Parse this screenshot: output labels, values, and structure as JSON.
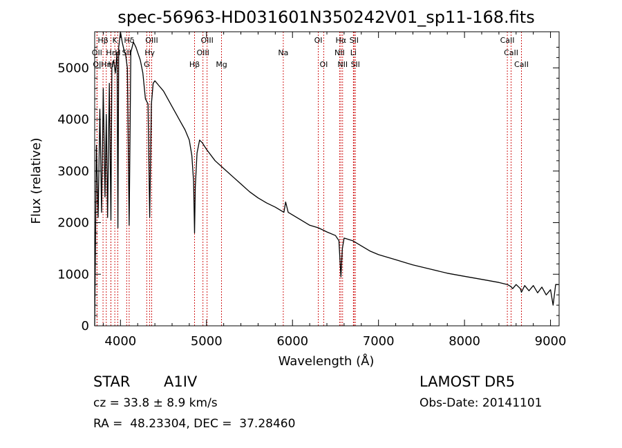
{
  "chart_data": {
    "type": "line",
    "title": "spec-56963-HD031601N350242V01_sp11-168.fits",
    "xlabel": "Wavelength (Å)",
    "ylabel": "Flux (relative)",
    "xlim": [
      3700,
      9100
    ],
    "ylim": [
      0,
      5700
    ],
    "xticks": [
      4000,
      5000,
      6000,
      7000,
      8000,
      9000
    ],
    "yticks": [
      0,
      1000,
      2000,
      3000,
      4000,
      5000
    ],
    "grid": false,
    "series": [
      {
        "x": [
          3700,
          3720,
          3740,
          3760,
          3780,
          3800,
          3820,
          3835,
          3850,
          3870,
          3889,
          3900,
          3920,
          3940,
          3960,
          3970,
          3980,
          4000,
          4020,
          4040,
          4060,
          4080,
          4101,
          4120,
          4150,
          4180,
          4200,
          4230,
          4260,
          4290,
          4320,
          4340,
          4360,
          4380,
          4400,
          4450,
          4500,
          4550,
          4600,
          4650,
          4700,
          4750,
          4800,
          4830,
          4850,
          4861,
          4870,
          4890,
          4920,
          4950,
          5000,
          5100,
          5200,
          5300,
          5400,
          5500,
          5600,
          5700,
          5800,
          5900,
          5920,
          5950,
          6000,
          6100,
          6200,
          6300,
          6400,
          6500,
          6540,
          6563,
          6580,
          6600,
          6700,
          6800,
          6900,
          7000,
          7200,
          7400,
          7600,
          7800,
          8000,
          8200,
          8400,
          8500,
          8540,
          8560,
          8600,
          8650,
          8662,
          8700,
          8750,
          8800,
          8850,
          8900,
          8950,
          9000,
          9030,
          9060,
          9090
        ],
        "y": [
          0,
          3500,
          2100,
          4200,
          2200,
          4600,
          2500,
          4100,
          2100,
          4700,
          2050,
          5000,
          5150,
          4900,
          5300,
          1900,
          5400,
          5700,
          5500,
          5350,
          5250,
          5000,
          1950,
          5300,
          5500,
          5400,
          5300,
          5150,
          4900,
          4400,
          4300,
          2100,
          4300,
          4700,
          4750,
          4650,
          4550,
          4400,
          4250,
          4100,
          3950,
          3800,
          3600,
          3300,
          2800,
          1800,
          2700,
          3350,
          3600,
          3550,
          3420,
          3200,
          3050,
          2900,
          2750,
          2600,
          2480,
          2380,
          2300,
          2200,
          2400,
          2200,
          2150,
          2050,
          1950,
          1900,
          1820,
          1750,
          1650,
          950,
          1500,
          1700,
          1650,
          1550,
          1450,
          1380,
          1280,
          1180,
          1100,
          1020,
          960,
          900,
          840,
          800,
          760,
          720,
          800,
          720,
          650,
          780,
          680,
          780,
          640,
          750,
          600,
          700,
          400,
          800,
          800
        ]
      }
    ],
    "line_markers": [
      {
        "label": "Hβ",
        "x": 3797,
        "row": 1
      },
      {
        "label": "K",
        "x": 3934,
        "row": 1
      },
      {
        "label": "Hδ",
        "x": 4101,
        "row": 1
      },
      {
        "label": "OIII",
        "x": 4363,
        "row": 1
      },
      {
        "label": "OIII",
        "x": 5007,
        "row": 1
      },
      {
        "label": "OI",
        "x": 6300,
        "row": 1
      },
      {
        "label": "Hα",
        "x": 6563,
        "row": 1
      },
      {
        "label": "SII",
        "x": 6716,
        "row": 1
      },
      {
        "label": "CaII",
        "x": 8498,
        "row": 1
      },
      {
        "label": "OII",
        "x": 3727,
        "row": 2
      },
      {
        "label": "Hε",
        "x": 3889,
        "row": 2
      },
      {
        "label": "H",
        "x": 3968,
        "row": 2
      },
      {
        "label": "SII",
        "x": 4072,
        "row": 2
      },
      {
        "label": "Hγ",
        "x": 4340,
        "row": 2
      },
      {
        "label": "OIII",
        "x": 4959,
        "row": 2
      },
      {
        "label": "Na",
        "x": 5893,
        "row": 2
      },
      {
        "label": "NII",
        "x": 6548,
        "row": 2
      },
      {
        "label": "Li",
        "x": 6708,
        "row": 2
      },
      {
        "label": "CaII",
        "x": 8542,
        "row": 2
      },
      {
        "label": "OI",
        "x": 3727,
        "row": 3
      },
      {
        "label": "Hη",
        "x": 3835,
        "row": 3
      },
      {
        "label": "H",
        "x": 3889,
        "row": 3
      },
      {
        "label": "G",
        "x": 4305,
        "row": 3
      },
      {
        "label": "Hβ",
        "x": 4861,
        "row": 3
      },
      {
        "label": "Mg",
        "x": 5175,
        "row": 3
      },
      {
        "label": "OI",
        "x": 6363,
        "row": 3
      },
      {
        "label": "NII",
        "x": 6583,
        "row": 3
      },
      {
        "label": "SII",
        "x": 6731,
        "row": 3
      },
      {
        "label": "CaII",
        "x": 8662,
        "row": 3
      }
    ]
  },
  "info": {
    "object_type": "STAR",
    "subclass": "A1IV",
    "survey": "LAMOST DR5",
    "cz": "cz = 33.8 ± 8.9 km/s",
    "obs_date": "Obs-Date: 20141101",
    "coords": "RA =  48.23304, DEC =  37.28460"
  }
}
